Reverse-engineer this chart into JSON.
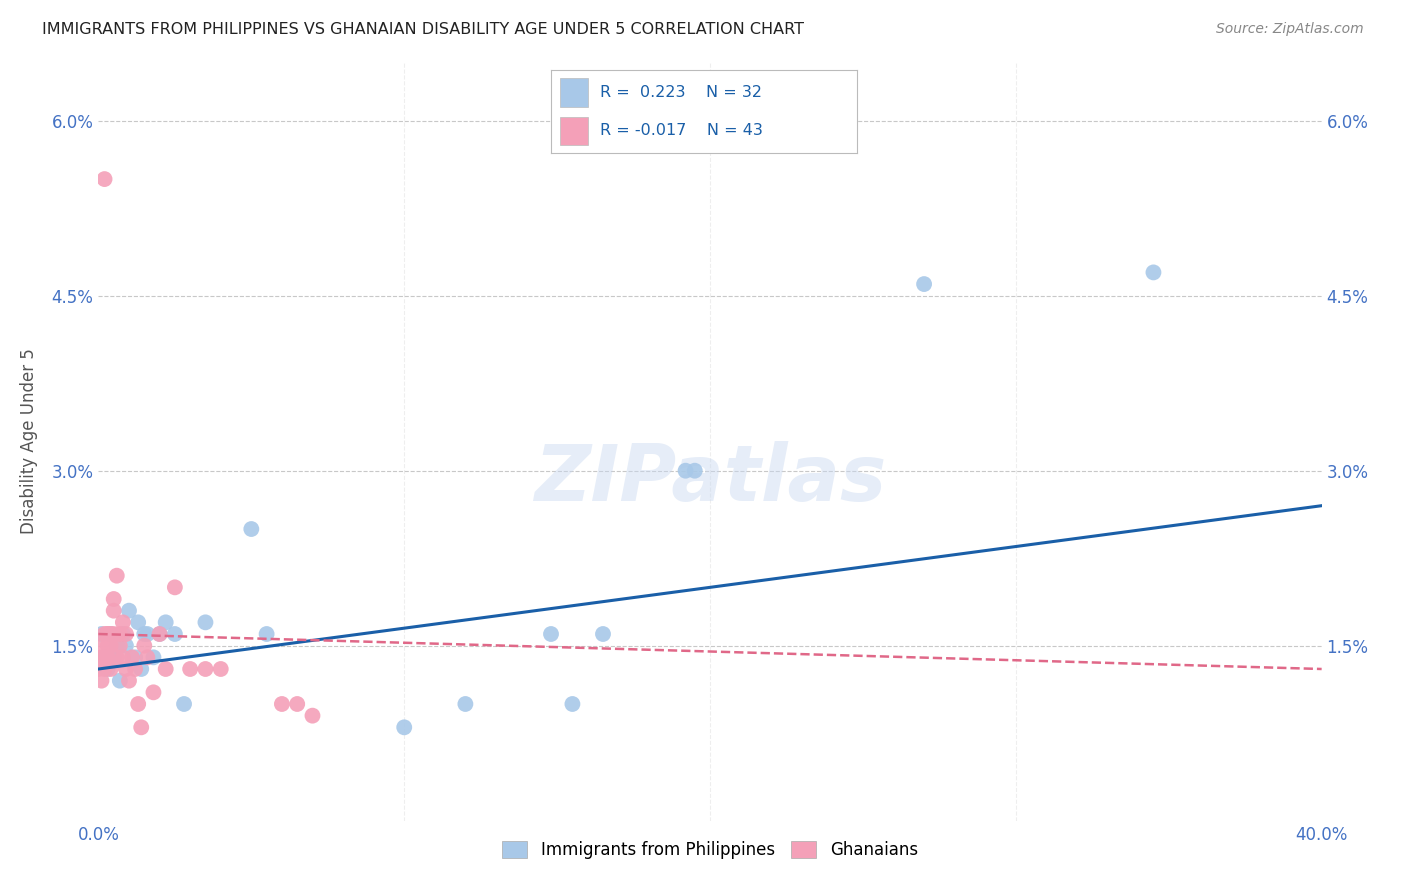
{
  "title": "IMMIGRANTS FROM PHILIPPINES VS GHANAIAN DISABILITY AGE UNDER 5 CORRELATION CHART",
  "source": "Source: ZipAtlas.com",
  "ylabel": "Disability Age Under 5",
  "legend_blue_label": "Immigrants from Philippines",
  "legend_pink_label": "Ghanaians",
  "legend_r_blue": "R =  0.223",
  "legend_n_blue": "N = 32",
  "legend_r_pink": "R = -0.017",
  "legend_n_pink": "N = 43",
  "blue_scatter_x": [
    0.001,
    0.002,
    0.003,
    0.004,
    0.005,
    0.006,
    0.007,
    0.008,
    0.009,
    0.01,
    0.012,
    0.013,
    0.014,
    0.015,
    0.016,
    0.018,
    0.02,
    0.022,
    0.025,
    0.028,
    0.035,
    0.055,
    0.1,
    0.12,
    0.148,
    0.155,
    0.165,
    0.192,
    0.195,
    0.27,
    0.345,
    0.05
  ],
  "blue_scatter_y": [
    0.016,
    0.014,
    0.013,
    0.016,
    0.014,
    0.015,
    0.012,
    0.016,
    0.015,
    0.018,
    0.014,
    0.017,
    0.013,
    0.016,
    0.016,
    0.014,
    0.016,
    0.017,
    0.016,
    0.01,
    0.017,
    0.016,
    0.008,
    0.01,
    0.016,
    0.01,
    0.016,
    0.03,
    0.03,
    0.046,
    0.047,
    0.025
  ],
  "pink_scatter_x": [
    0.0,
    0.001,
    0.001,
    0.001,
    0.002,
    0.002,
    0.002,
    0.003,
    0.003,
    0.003,
    0.003,
    0.004,
    0.004,
    0.004,
    0.005,
    0.005,
    0.005,
    0.006,
    0.006,
    0.007,
    0.007,
    0.008,
    0.008,
    0.009,
    0.009,
    0.01,
    0.011,
    0.012,
    0.013,
    0.014,
    0.015,
    0.016,
    0.018,
    0.02,
    0.022,
    0.025,
    0.03,
    0.035,
    0.04,
    0.06,
    0.065,
    0.07,
    0.002
  ],
  "pink_scatter_y": [
    0.013,
    0.014,
    0.012,
    0.015,
    0.016,
    0.013,
    0.014,
    0.015,
    0.016,
    0.014,
    0.016,
    0.013,
    0.015,
    0.016,
    0.018,
    0.019,
    0.016,
    0.014,
    0.021,
    0.015,
    0.016,
    0.014,
    0.017,
    0.016,
    0.013,
    0.012,
    0.014,
    0.013,
    0.01,
    0.008,
    0.015,
    0.014,
    0.011,
    0.016,
    0.013,
    0.02,
    0.013,
    0.013,
    0.013,
    0.01,
    0.01,
    0.009,
    0.055
  ],
  "blue_line_x0": 0.0,
  "blue_line_x1": 0.4,
  "blue_line_y0": 0.013,
  "blue_line_y1": 0.027,
  "pink_line_x0": 0.0,
  "pink_line_x1": 0.4,
  "pink_line_y0": 0.016,
  "pink_line_y1": 0.013,
  "xlim": [
    0.0,
    0.4
  ],
  "ylim": [
    0.0,
    0.065
  ],
  "ytick_values": [
    0.0,
    0.015,
    0.03,
    0.045,
    0.06
  ],
  "xtick_values": [
    0.0,
    0.1,
    0.2,
    0.3,
    0.4
  ],
  "blue_color": "#a8c8e8",
  "pink_color": "#f4a0b8",
  "blue_line_color": "#1a5fa8",
  "pink_line_color": "#e06888",
  "background_color": "#ffffff",
  "grid_color": "#c8c8c8",
  "watermark": "ZIPatlas"
}
